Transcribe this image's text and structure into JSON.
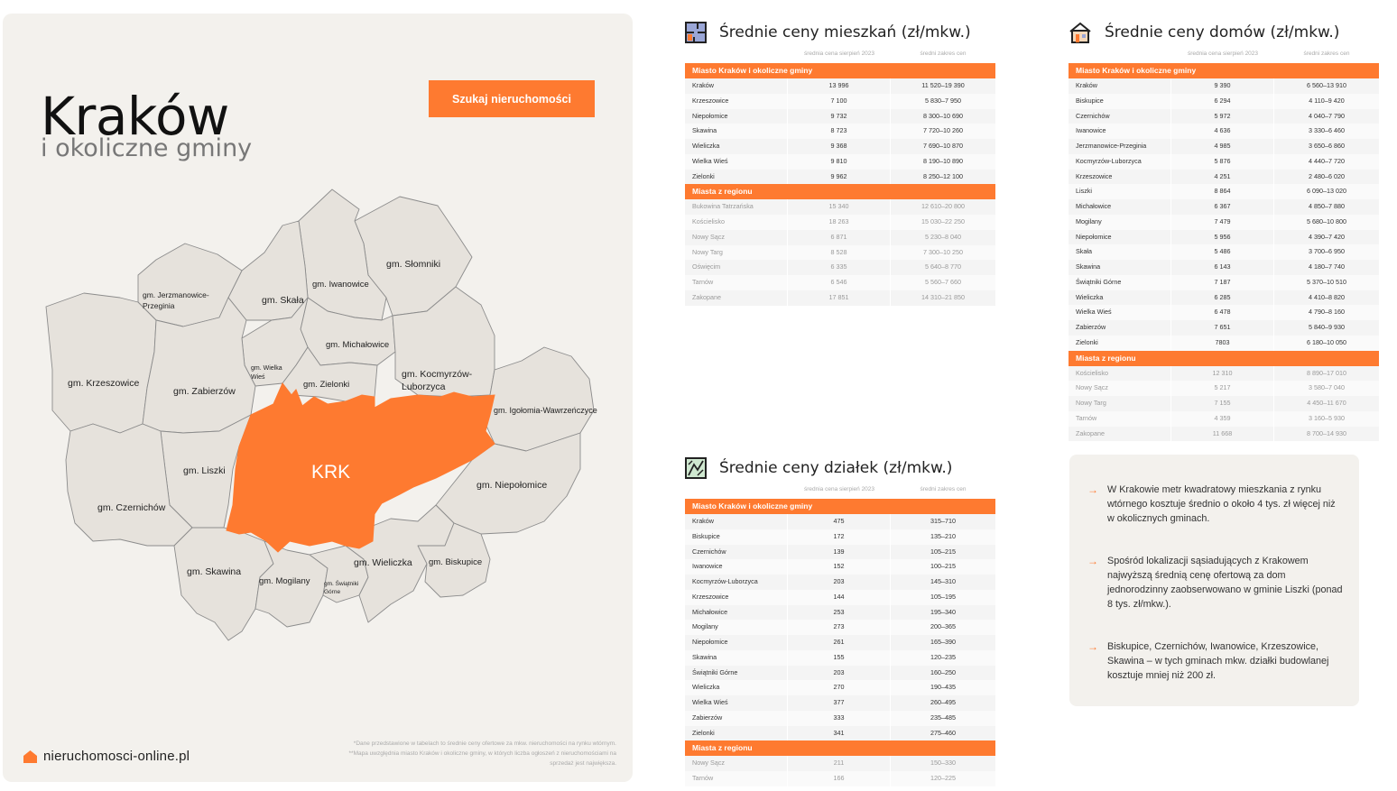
{
  "header": {
    "title": "Kraków",
    "subtitle": "i okoliczne gminy",
    "search_button": "Szukaj nieruchomości"
  },
  "map": {
    "center_label": "KRK",
    "labels": {
      "slomniki": "gm. Słomniki",
      "iwanowice": "gm. Iwanowice",
      "skala": "gm. Skała",
      "jerzmanowice1": "gm. Jerzmanowice-",
      "jerzmanowice2": "Przeginia",
      "michalowice": "gm. Michałowice",
      "wielkawies1": "gm. Wielka",
      "wielkawies2": "Wieś",
      "zielonki": "gm. Zielonki",
      "kocmyrzow1": "gm. Kocmyrzów-",
      "kocmyrzow2": "Luborzyca",
      "krzeszowice": "gm. Krzeszowice",
      "zabierzow": "gm. Zabierzów",
      "igolomia": "gm. Igołomia-Wawrzeńczyce",
      "liszki": "gm. Liszki",
      "niepolomice": "gm. Niepołomice",
      "czernichow": "gm. Czernichów",
      "skawina": "gm. Skawina",
      "mogilany": "gm. Mogilany",
      "swiatniki1": "gm. Świątniki",
      "swiatniki2": "Górne",
      "wieliczka": "gm. Wieliczka",
      "biskupice": "gm. Biskupice"
    },
    "colors": {
      "accent": "#fe7a30",
      "region_fill": "#e6e2dc",
      "region_stroke": "#8c8c8c"
    }
  },
  "brand": {
    "name": "nieruchomosci-online.pl",
    "icon": "house-icon"
  },
  "footnote": {
    "line1": "*Dane przedstawione w tabelach to średnie ceny ofertowe za mkw. nieruchomości na rynku wtórnym.",
    "line2": "**Mapa uwzględnia miasto Kraków i okoliczne gminy, w których liczba ogłoszeń z nieruchomościami na",
    "line3": "sprzedaż jest największa."
  },
  "columns": {
    "price": "średnia cena sierpień 2023",
    "range": "średni zakres cen"
  },
  "sections": {
    "city": "Miasto Kraków i okoliczne gminy",
    "region": "Miasta z regionu"
  },
  "apartments": {
    "title": "Średnie ceny mieszkań (zł/mkw.)",
    "icon": "floorplan-icon",
    "city_rows": [
      [
        "Kraków",
        "13 996",
        "11 520–19 390"
      ],
      [
        "Krzeszowice",
        "7 100",
        "5 830–7 950"
      ],
      [
        "Niepołomice",
        "9 732",
        "8 300–10 690"
      ],
      [
        "Skawina",
        "8 723",
        "7 720–10 260"
      ],
      [
        "Wieliczka",
        "9 368",
        "7 690–10 870"
      ],
      [
        "Wielka Wieś",
        "9 810",
        "8 190–10 890"
      ],
      [
        "Zielonki",
        "9 962",
        "8 250–12 100"
      ]
    ],
    "region_rows": [
      [
        "Bukowina Tatrzańska",
        "15 340",
        "12 610–20 800"
      ],
      [
        "Kościelisko",
        "18 263",
        "15 030–22 250"
      ],
      [
        "Nowy Sącz",
        "6 871",
        "5 230–8 040"
      ],
      [
        "Nowy Targ",
        "8 528",
        "7 300–10 250"
      ],
      [
        "Oświęcim",
        "6 335",
        "5 640–8 770"
      ],
      [
        "Tarnów",
        "6 546",
        "5 560–7 660"
      ],
      [
        "Zakopane",
        "17 851",
        "14 310–21 850"
      ]
    ]
  },
  "houses": {
    "title": "Średnie ceny domów (zł/mkw.)",
    "icon": "house-outline-icon",
    "city_rows": [
      [
        "Kraków",
        "9 390",
        "6 560–13 910"
      ],
      [
        "Biskupice",
        "6 294",
        "4 110–9 420"
      ],
      [
        "Czernichów",
        "5 972",
        "4 040–7 790"
      ],
      [
        "Iwanowice",
        "4 636",
        "3 330–6 460"
      ],
      [
        "Jerzmanowice-Przeginia",
        "4 985",
        "3 650–6 860"
      ],
      [
        "Kocmyrzów-Luborzyca",
        "5 876",
        "4 440–7 720"
      ],
      [
        "Krzeszowice",
        "4 251",
        "2 480–6 020"
      ],
      [
        "Liszki",
        "8 864",
        "6 090–13 020"
      ],
      [
        "Michałowice",
        "6 367",
        "4 850–7 880"
      ],
      [
        "Mogilany",
        "7 479",
        "5 680–10 800"
      ],
      [
        "Niepołomice",
        "5 956",
        "4 390–7 420"
      ],
      [
        "Skała",
        "5 486",
        "3 700–6 950"
      ],
      [
        "Skawina",
        "6 143",
        "4 180–7 740"
      ],
      [
        "Świątniki Górne",
        "7 187",
        "5 370–10 510"
      ],
      [
        "Wieliczka",
        "6 285",
        "4 410–8 820"
      ],
      [
        "Wielka Wieś",
        "6 478",
        "4 790–8 160"
      ],
      [
        "Zabierzów",
        "7 651",
        "5 840–9 930"
      ],
      [
        "Zielonki",
        "7803",
        "6 180–10 050"
      ]
    ],
    "region_rows": [
      [
        "Kościelisko",
        "12 310",
        "8 890–17 010"
      ],
      [
        "Nowy Sącz",
        "5 217",
        "3 580–7 040"
      ],
      [
        "Nowy Targ",
        "7 155",
        "4 450–11 670"
      ],
      [
        "Tarnów",
        "4 359",
        "3 160–5 930"
      ],
      [
        "Zakopane",
        "11 668",
        "8 700–14 930"
      ]
    ]
  },
  "plots": {
    "title": "Średnie ceny działek (zł/mkw.)",
    "icon": "plot-icon",
    "city_rows": [
      [
        "Kraków",
        "475",
        "315–710"
      ],
      [
        "Biskupice",
        "172",
        "135–210"
      ],
      [
        "Czernichów",
        "139",
        "105–215"
      ],
      [
        "Iwanowice",
        "152",
        "100–215"
      ],
      [
        "Kocmyrzów-Luborzyca",
        "203",
        "145–310"
      ],
      [
        "Krzeszowice",
        "144",
        "105–195"
      ],
      [
        "Michałowice",
        "253",
        "195–340"
      ],
      [
        "Mogilany",
        "273",
        "200–365"
      ],
      [
        "Niepołomice",
        "261",
        "165–390"
      ],
      [
        "Skawina",
        "155",
        "120–235"
      ],
      [
        "Świątniki Górne",
        "203",
        "160–250"
      ],
      [
        "Wieliczka",
        "270",
        "190–435"
      ],
      [
        "Wielka Wieś",
        "377",
        "260–495"
      ],
      [
        "Zabierzów",
        "333",
        "235–485"
      ],
      [
        "Zielonki",
        "341",
        "275–460"
      ]
    ],
    "region_rows": [
      [
        "Nowy Sącz",
        "211",
        "150–330"
      ],
      [
        "Tarnów",
        "166",
        "120–225"
      ]
    ]
  },
  "insights": [
    "W Krakowie metr kwadratowy mieszkania z rynku wtórnego kosztuje średnio o około 4 tys. zł więcej niż w okolicznych gminach.",
    "Spośród lokalizacji sąsiadujących z Krakowem najwyższą średnią cenę ofertową za dom jednorodzinny zaobserwowano w gminie Liszki (ponad 8 tys. zł/mkw.).",
    "Biskupice, Czernichów, Iwanowice, Krzeszowice, Skawina – w tych gminach mkw. działki budowlanej kosztuje mniej niż 200 zł."
  ]
}
